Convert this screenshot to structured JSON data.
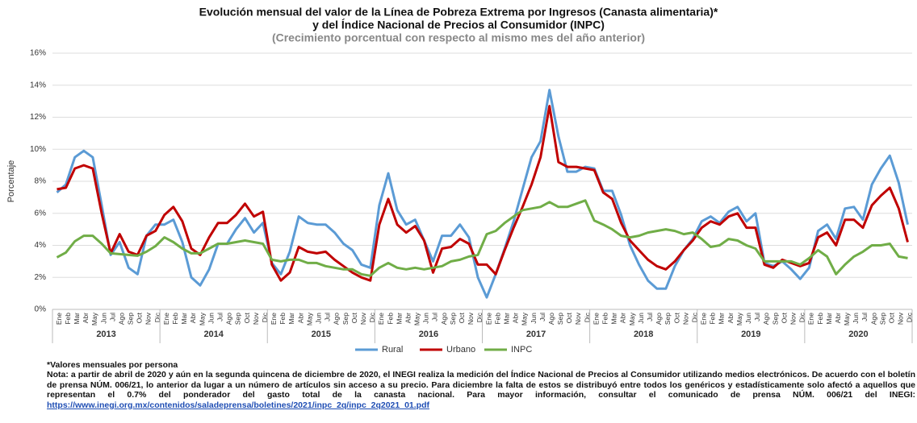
{
  "chart_data": {
    "type": "line",
    "title": [
      "Evolución mensual del valor de la Línea de Pobreza Extrema por Ingresos (Canasta alimentaria)*",
      "y del Índice Nacional de Precios al Consumidor (INPC)"
    ],
    "subtitle": "(Crecimiento porcentual con respecto al mismo mes del año anterior)",
    "ylabel": "Porcentaje",
    "categories": [
      "Ene",
      "Feb",
      "Mar",
      "Abr",
      "May",
      "Jun",
      "Jul",
      "Ago",
      "Sep",
      "Oct",
      "Nov",
      "Dic",
      "Ene",
      "Feb",
      "Mar",
      "Abr",
      "May",
      "Jun",
      "Jul",
      "Ago",
      "Sep",
      "Oct",
      "Nov",
      "Dic",
      "Ene",
      "Feb",
      "Mar",
      "Abr",
      "May",
      "Jun",
      "Jul",
      "Ago",
      "Sep",
      "Oct",
      "Nov",
      "Dic",
      "Ene",
      "Feb",
      "Mar",
      "Abr",
      "May",
      "Jun",
      "Jul",
      "Ago",
      "Sep",
      "Oct",
      "Nov",
      "Dic",
      "Ene",
      "Feb",
      "Mar",
      "Abr",
      "May",
      "Jun",
      "Jul",
      "Ago",
      "Sep",
      "Oct",
      "Nov",
      "Dic",
      "Ene",
      "Feb",
      "Mar",
      "Abr",
      "May",
      "Jun",
      "Jul",
      "Ago",
      "Sep",
      "Oct",
      "Nov",
      "Dic",
      "Ene",
      "Feb",
      "Mar",
      "Abr",
      "May",
      "Jun",
      "Jul",
      "Ago",
      "Sep",
      "Oct",
      "Nov",
      "Dic",
      "Ene",
      "Feb",
      "Mar",
      "Abr",
      "May",
      "Jun",
      "Jul",
      "Ago",
      "Sep",
      "Oct",
      "Nov",
      "Dic"
    ],
    "years": [
      "2013",
      "2014",
      "2015",
      "2016",
      "2017",
      "2018",
      "2019",
      "2020"
    ],
    "series": [
      {
        "name": "Rural",
        "color": "#5b9bd5",
        "values": [
          7.3,
          7.8,
          9.5,
          9.9,
          9.5,
          6.5,
          3.4,
          4.2,
          2.6,
          2.2,
          4.6,
          5.3,
          5.3,
          5.6,
          4.2,
          2.0,
          1.5,
          2.5,
          4.1,
          4.1,
          5.0,
          5.7,
          4.8,
          5.4,
          2.9,
          2.2,
          3.6,
          5.8,
          5.4,
          5.3,
          5.3,
          4.8,
          4.1,
          3.7,
          2.8,
          2.6,
          6.5,
          8.5,
          6.2,
          5.3,
          5.6,
          4.3,
          3.0,
          4.6,
          4.6,
          5.3,
          4.5,
          2.0,
          0.75,
          2.2,
          3.8,
          5.5,
          7.5,
          9.5,
          10.5,
          13.7,
          10.8,
          8.6,
          8.6,
          8.9,
          8.8,
          7.4,
          7.4,
          5.9,
          4.0,
          2.8,
          1.8,
          1.3,
          1.3,
          2.7,
          3.7,
          4.4,
          5.5,
          5.8,
          5.4,
          6.1,
          6.4,
          5.5,
          6.0,
          2.9,
          2.7,
          3.0,
          2.5,
          1.9,
          2.6,
          4.9,
          5.3,
          4.4,
          6.3,
          6.4,
          5.6,
          7.8,
          8.8,
          9.6,
          7.9,
          5.3
        ]
      },
      {
        "name": "Urbano",
        "color": "#c00000",
        "values": [
          7.5,
          7.6,
          8.8,
          9.0,
          8.8,
          6.0,
          3.5,
          4.7,
          3.6,
          3.4,
          4.6,
          4.9,
          5.9,
          6.4,
          5.5,
          3.8,
          3.4,
          4.5,
          5.4,
          5.4,
          5.9,
          6.6,
          5.8,
          6.1,
          2.8,
          1.8,
          2.3,
          3.9,
          3.6,
          3.5,
          3.6,
          3.1,
          2.7,
          2.3,
          2.0,
          1.8,
          5.3,
          6.9,
          5.3,
          4.8,
          5.2,
          4.3,
          2.3,
          3.8,
          3.9,
          4.4,
          4.1,
          2.8,
          2.8,
          2.2,
          3.7,
          5.1,
          6.4,
          7.8,
          9.5,
          12.7,
          9.2,
          8.9,
          8.9,
          8.8,
          8.7,
          7.3,
          6.9,
          5.4,
          4.3,
          3.7,
          3.1,
          2.7,
          2.5,
          3.0,
          3.7,
          4.3,
          5.1,
          5.5,
          5.3,
          5.8,
          6.0,
          5.1,
          5.1,
          2.8,
          2.6,
          3.1,
          2.9,
          2.7,
          2.9,
          4.5,
          4.8,
          4.0,
          5.6,
          5.6,
          5.1,
          6.5,
          7.1,
          7.6,
          6.3,
          4.2
        ]
      },
      {
        "name": "INPC",
        "color": "#70ad47",
        "values": [
          3.25,
          3.55,
          4.25,
          4.6,
          4.6,
          4.1,
          3.5,
          3.45,
          3.4,
          3.35,
          3.6,
          3.95,
          4.5,
          4.2,
          3.8,
          3.5,
          3.5,
          3.8,
          4.1,
          4.1,
          4.2,
          4.3,
          4.2,
          4.1,
          3.1,
          3.0,
          3.1,
          3.1,
          2.9,
          2.9,
          2.7,
          2.6,
          2.5,
          2.5,
          2.2,
          2.1,
          2.6,
          2.9,
          2.6,
          2.5,
          2.6,
          2.5,
          2.6,
          2.7,
          3.0,
          3.1,
          3.3,
          3.4,
          4.7,
          4.9,
          5.4,
          5.8,
          6.2,
          6.3,
          6.4,
          6.7,
          6.4,
          6.4,
          6.6,
          6.8,
          5.55,
          5.3,
          5.0,
          4.6,
          4.5,
          4.6,
          4.8,
          4.9,
          5.0,
          4.9,
          4.7,
          4.8,
          4.4,
          3.9,
          4.0,
          4.4,
          4.3,
          4.0,
          3.8,
          3.0,
          3.0,
          3.0,
          3.0,
          2.8,
          3.2,
          3.7,
          3.3,
          2.2,
          2.8,
          3.3,
          3.6,
          4.0,
          4.0,
          4.1,
          3.3,
          3.2
        ]
      }
    ],
    "ylim": [
      0,
      16
    ],
    "yticks": [
      {
        "value": 0,
        "label": "0%"
      },
      {
        "value": 2,
        "label": "2%"
      },
      {
        "value": 4,
        "label": "4%"
      },
      {
        "value": 6,
        "label": "6%"
      },
      {
        "value": 8,
        "label": "8%"
      },
      {
        "value": 10,
        "label": "10%"
      },
      {
        "value": 12,
        "label": "12%"
      },
      {
        "value": 14,
        "label": "14%"
      },
      {
        "value": 16,
        "label": "16%"
      }
    ],
    "grid": true,
    "legend": "bottom"
  },
  "notes": {
    "footnote": "*Valores mensuales por persona",
    "text": "Nota: a partir de abril de 2020 y aún en la segunda quincena de diciembre de 2020, el INEGI realiza la medición del Índice Nacional de Precios al Consumidor utilizando medios electrónicos. De acuerdo con el boletín de prensa NÚM. 006/21, lo anterior da lugar a un número de artículos sin acceso a su precio. Para diciembre la falta de estos se distribuyó entre todos los genéricos y estadísticamente solo afectó a aquellos que representan el 0.7% del ponderador del gasto total de la canasta nacional. Para mayor información, consultar el comunicado de prensa NÚM. 006/21 del INEGI:",
    "link": "https://www.inegi.org.mx/contenidos/saladeprensa/boletines/2021/inpc_2q/inpc_2q2021_01.pdf"
  }
}
